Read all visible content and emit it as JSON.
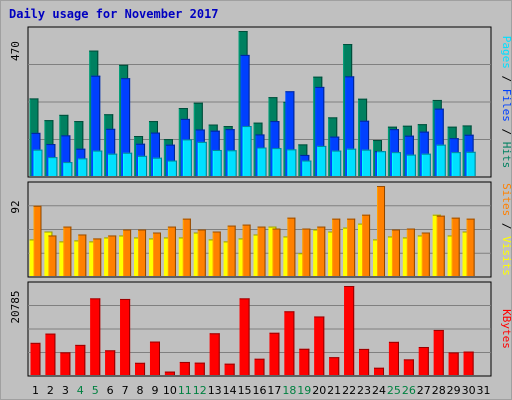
{
  "header": {
    "title": "Daily usage for November 2017"
  },
  "colors": {
    "pages": "#00e0ff",
    "files": "#0040ff",
    "hits": "#008060",
    "visits": "#ffff00",
    "sites": "#ff8000",
    "kbytes": "#ff0000",
    "weekday_label": "#000000",
    "weekend_label": "#008040"
  },
  "chart_data": [
    {
      "type": "bar",
      "name": "hits-files-pages",
      "categories": [
        "1",
        "2",
        "3",
        "4",
        "5",
        "6",
        "7",
        "8",
        "9",
        "10",
        "11",
        "12",
        "13",
        "14",
        "15",
        "16",
        "17",
        "18",
        "19",
        "20",
        "21",
        "22",
        "23",
        "24",
        "25",
        "26",
        "27",
        "28",
        "29",
        "30",
        "31"
      ],
      "max_label": "470",
      "ylim": [
        0,
        470
      ],
      "legend": [
        {
          "label": "Pages",
          "color": "pages"
        },
        {
          "label": "Files",
          "color": "files"
        },
        {
          "label": "Hits",
          "color": "hits"
        }
      ],
      "series": [
        {
          "name": "Hits",
          "values": [
            253,
            183,
            200,
            180,
            407,
            202,
            361,
            132,
            180,
            122,
            222,
            239,
            169,
            164,
            470,
            175,
            257,
            242,
            105,
            323,
            192,
            428,
            252,
            119,
            162,
            165,
            170,
            248,
            162,
            166,
            null
          ]
        },
        {
          "name": "Files",
          "values": [
            142,
            106,
            134,
            91,
            326,
            155,
            318,
            107,
            143,
            104,
            187,
            153,
            149,
            154,
            393,
            137,
            180,
            276,
            71,
            290,
            130,
            324,
            181,
            83,
            154,
            133,
            146,
            220,
            125,
            136,
            null
          ]
        },
        {
          "name": "Pages",
          "values": [
            88,
            64,
            48,
            60,
            85,
            75,
            78,
            68,
            62,
            53,
            121,
            113,
            87,
            86,
            164,
            95,
            93,
            89,
            53,
            100,
            85,
            91,
            88,
            83,
            80,
            72,
            75,
            104,
            80,
            81,
            null
          ]
        }
      ]
    },
    {
      "type": "bar",
      "name": "visits-sites",
      "categories": [
        "1",
        "2",
        "3",
        "4",
        "5",
        "6",
        "7",
        "8",
        "9",
        "10",
        "11",
        "12",
        "13",
        "14",
        "15",
        "16",
        "17",
        "18",
        "19",
        "20",
        "21",
        "22",
        "23",
        "24",
        "25",
        "26",
        "27",
        "28",
        "29",
        "30",
        "31"
      ],
      "max_label": "92",
      "ylim": [
        0,
        92
      ],
      "legend": [
        {
          "label": "Sites",
          "color": "sites"
        },
        {
          "label": "Visits",
          "color": "visits"
        }
      ],
      "series": [
        {
          "name": "Visits",
          "values": [
            38,
            46,
            36,
            37,
            36,
            40,
            42,
            40,
            39,
            40,
            40,
            45,
            38,
            36,
            39,
            43,
            51,
            41,
            24,
            48,
            46,
            50,
            54,
            38,
            41,
            40,
            42,
            63,
            42,
            46,
            null
          ]
        },
        {
          "name": "Sites",
          "values": [
            72,
            42,
            51,
            43,
            39,
            42,
            48,
            48,
            45,
            51,
            59,
            48,
            46,
            52,
            53,
            51,
            49,
            60,
            49,
            51,
            59,
            59,
            63,
            92,
            48,
            49,
            45,
            62,
            60,
            59,
            null
          ]
        }
      ]
    },
    {
      "type": "bar",
      "name": "kbytes",
      "categories": [
        "1",
        "2",
        "3",
        "4",
        "5",
        "6",
        "7",
        "8",
        "9",
        "10",
        "11",
        "12",
        "13",
        "14",
        "15",
        "16",
        "17",
        "18",
        "19",
        "20",
        "21",
        "22",
        "23",
        "24",
        "25",
        "26",
        "27",
        "28",
        "29",
        "30",
        "31"
      ],
      "max_label": "20785",
      "ylim": [
        0,
        20785
      ],
      "legend": [
        {
          "label": "KBytes",
          "color": "kbytes"
        }
      ],
      "series": [
        {
          "name": "KBytes",
          "values": [
            7650,
            9790,
            5460,
            7180,
            17930,
            5930,
            17790,
            3040,
            7950,
            1020,
            3240,
            3080,
            9860,
            2840,
            17930,
            3980,
            9980,
            14940,
            6280,
            13750,
            4340,
            20785,
            6250,
            1900,
            7880,
            3840,
            6700,
            10630,
            5440,
            5640,
            null
          ]
        }
      ]
    }
  ]
}
